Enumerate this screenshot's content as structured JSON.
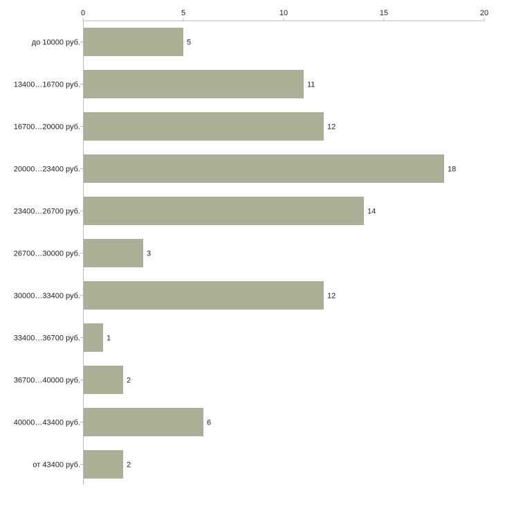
{
  "chart_data": {
    "type": "bar",
    "orientation": "horizontal",
    "title": "",
    "xlabel": "",
    "ylabel": "",
    "xlim": [
      0,
      20
    ],
    "x_ticks": [
      0,
      5,
      10,
      15,
      20
    ],
    "x_tick_labels": [
      "0",
      "5",
      "10",
      "15",
      "20"
    ],
    "grid": false,
    "categories": [
      "до 10000 руб.",
      "13400…16700 руб.",
      "16700…20000 руб.",
      "20000…23400 руб.",
      "23400…26700 руб.",
      "26700…30000 руб.",
      "30000…33400 руб.",
      "33400…36700 руб.",
      "36700…40000 руб.",
      "40000…43400 руб.",
      "от 43400 руб."
    ],
    "values": [
      5,
      11,
      12,
      18,
      14,
      3,
      12,
      1,
      2,
      6,
      2
    ],
    "value_labels": [
      "5",
      "11",
      "12",
      "18",
      "14",
      "3",
      "12",
      "1",
      "2",
      "6",
      "2"
    ],
    "colors": {
      "bar": "#abaf96",
      "axis": "#b8b8b8",
      "text": "#222222"
    }
  }
}
